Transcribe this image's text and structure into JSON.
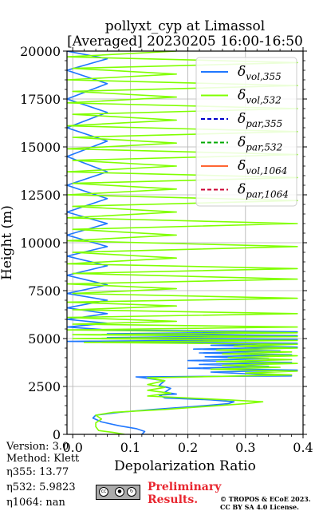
{
  "header": {
    "title_line1": "pollyxt_cyp at Limassol",
    "title_line2": "[Averaged] 20230205 16:00-16:50"
  },
  "info": {
    "version": "Version: 3.0",
    "method": "Method: Klett",
    "eta355": "η355:  13.77",
    "eta532": "η532: 5.9823",
    "eta1064": "η1064:    nan"
  },
  "footer": {
    "preliminary_line1": "Preliminary",
    "preliminary_line2": "Results.",
    "copyright_line1": "© TROPOS & ECoE 2023.",
    "copyright_line2": "CC BY SA 4.0 License."
  },
  "colors": {
    "vol355": "#1f77ff",
    "vol532": "#80ff00",
    "par355": "#0000cc",
    "par532": "#00aa00",
    "vol1064": "#ff6633",
    "par1064": "#cc0033",
    "grid": "#b0b0b0",
    "preliminary": "#e8262f"
  },
  "chart_data": {
    "type": "line",
    "xlabel": "Depolarization Ratio",
    "ylabel": "Height (m)",
    "xlim": [
      -0.01,
      0.4
    ],
    "ylim": [
      0,
      20000
    ],
    "xticks": [
      0.0,
      0.1,
      0.2,
      0.3,
      0.4
    ],
    "xtick_labels": [
      "0.0",
      "0.1",
      "0.2",
      "0.3",
      "0.4"
    ],
    "yticks": [
      0,
      2500,
      5000,
      7500,
      10000,
      12500,
      15000,
      17500,
      20000
    ],
    "ytick_labels": [
      "0",
      "2500",
      "5000",
      "7500",
      "10000",
      "12500",
      "15000",
      "17500",
      "20000"
    ],
    "grid": true,
    "legend_position": "top-right",
    "legend": [
      {
        "base": "δ",
        "sub": "vol,355",
        "style": "solid",
        "color_key": "vol355"
      },
      {
        "base": "δ",
        "sub": "vol,532",
        "style": "solid",
        "color_key": "vol532"
      },
      {
        "base": "δ",
        "sub": "par,355",
        "style": "dashed",
        "color_key": "par355"
      },
      {
        "base": "δ",
        "sub": "par,532",
        "style": "dashed",
        "color_key": "par532"
      },
      {
        "base": "δ",
        "sub": "vol,1064",
        "style": "solid",
        "color_key": "vol1064"
      },
      {
        "base": "δ",
        "sub": "par,1064",
        "style": "dashed",
        "color_key": "par1064"
      }
    ],
    "series": [
      {
        "name": "δvol,355",
        "color_key": "vol355",
        "points": [
          [
            0.12,
            0
          ],
          [
            0.125,
            150
          ],
          [
            0.11,
            300
          ],
          [
            0.08,
            450
          ],
          [
            0.05,
            650
          ],
          [
            0.035,
            850
          ],
          [
            0.04,
            1000
          ],
          [
            0.08,
            1150
          ],
          [
            0.14,
            1300
          ],
          [
            0.21,
            1450
          ],
          [
            0.27,
            1600
          ],
          [
            0.28,
            1700
          ],
          [
            0.24,
            1800
          ],
          [
            0.16,
            1900
          ],
          [
            0.15,
            2050
          ],
          [
            0.18,
            2100
          ],
          [
            0.16,
            2200
          ],
          [
            0.17,
            2400
          ],
          [
            0.15,
            2550
          ],
          [
            0.16,
            2800
          ],
          [
            0.11,
            3000
          ],
          [
            0.38,
            3050
          ],
          [
            0.24,
            3250
          ],
          [
            0.39,
            3350
          ],
          [
            0.2,
            3450
          ],
          [
            0.34,
            3550
          ],
          [
            0.22,
            3650
          ],
          [
            0.38,
            3750
          ],
          [
            0.2,
            3850
          ],
          [
            0.34,
            3950
          ],
          [
            0.23,
            4050
          ],
          [
            0.38,
            4150
          ],
          [
            0.22,
            4250
          ],
          [
            0.36,
            4350
          ],
          [
            0.21,
            4450
          ],
          [
            0.39,
            4550
          ],
          [
            0.24,
            4650
          ],
          [
            0.39,
            4750
          ],
          [
            -0.01,
            4850
          ],
          [
            0.39,
            4950
          ],
          [
            0.06,
            5050
          ],
          [
            0.39,
            5150
          ],
          [
            0.06,
            5250
          ],
          [
            0.39,
            5350
          ],
          [
            0.06,
            5450
          ],
          [
            -0.01,
            5600
          ],
          [
            0.06,
            5800
          ],
          [
            -0.01,
            6000
          ],
          [
            0.06,
            6300
          ],
          [
            -0.01,
            6600
          ],
          [
            0.06,
            7000
          ],
          [
            -0.01,
            7350
          ],
          [
            0.06,
            7800
          ],
          [
            -0.01,
            8300
          ],
          [
            0.06,
            8800
          ],
          [
            -0.01,
            9300
          ],
          [
            0.06,
            9800
          ],
          [
            -0.01,
            10400
          ],
          [
            0.06,
            11000
          ],
          [
            -0.01,
            11600
          ],
          [
            0.06,
            12300
          ],
          [
            -0.01,
            13000
          ],
          [
            0.06,
            13700
          ],
          [
            -0.01,
            14500
          ],
          [
            0.06,
            15300
          ],
          [
            -0.01,
            16000
          ],
          [
            0.06,
            16800
          ],
          [
            -0.01,
            17500
          ],
          [
            0.06,
            18300
          ],
          [
            -0.01,
            19000
          ],
          [
            0.06,
            19600
          ],
          [
            -0.01,
            20000
          ]
        ]
      },
      {
        "name": "δvol,532",
        "color_key": "vol532",
        "points": [
          [
            0.09,
            0
          ],
          [
            0.07,
            100
          ],
          [
            0.045,
            200
          ],
          [
            0.04,
            400
          ],
          [
            0.04,
            600
          ],
          [
            0.05,
            800
          ],
          [
            0.04,
            1000
          ],
          [
            0.07,
            1150
          ],
          [
            0.16,
            1300
          ],
          [
            0.23,
            1450
          ],
          [
            0.3,
            1600
          ],
          [
            0.33,
            1700
          ],
          [
            0.27,
            1800
          ],
          [
            0.2,
            1900
          ],
          [
            0.13,
            2000
          ],
          [
            0.17,
            2150
          ],
          [
            0.13,
            2300
          ],
          [
            0.16,
            2450
          ],
          [
            0.13,
            2600
          ],
          [
            0.16,
            2800
          ],
          [
            0.13,
            2950
          ],
          [
            0.38,
            3100
          ],
          [
            0.3,
            3200
          ],
          [
            0.39,
            3300
          ],
          [
            0.24,
            3400
          ],
          [
            0.36,
            3500
          ],
          [
            0.26,
            3600
          ],
          [
            0.39,
            3700
          ],
          [
            0.25,
            3800
          ],
          [
            0.38,
            3900
          ],
          [
            0.27,
            4000
          ],
          [
            0.39,
            4100
          ],
          [
            0.26,
            4200
          ],
          [
            0.38,
            4300
          ],
          [
            0.25,
            4400
          ],
          [
            0.39,
            4500
          ],
          [
            0.28,
            4600
          ],
          [
            0.39,
            4700
          ],
          [
            0.02,
            4800
          ],
          [
            0.39,
            4900
          ],
          [
            0.0,
            5000
          ],
          [
            0.39,
            5100
          ],
          [
            0.0,
            5200
          ],
          [
            0.39,
            5300
          ],
          [
            -0.01,
            5450
          ],
          [
            0.39,
            5600
          ],
          [
            0.0,
            5750
          ],
          [
            0.18,
            5900
          ],
          [
            -0.01,
            6100
          ],
          [
            0.39,
            6300
          ],
          [
            0.0,
            6500
          ],
          [
            0.18,
            6700
          ],
          [
            -0.01,
            6900
          ],
          [
            0.39,
            7100
          ],
          [
            0.0,
            7350
          ],
          [
            0.18,
            7600
          ],
          [
            -0.01,
            7850
          ],
          [
            0.39,
            8100
          ],
          [
            0.0,
            8400
          ],
          [
            0.39,
            8650
          ],
          [
            -0.01,
            8900
          ],
          [
            0.18,
            9200
          ],
          [
            0.0,
            9500
          ],
          [
            0.39,
            9800
          ],
          [
            -0.01,
            10100
          ],
          [
            0.18,
            10400
          ],
          [
            0.0,
            10700
          ],
          [
            0.39,
            11000
          ],
          [
            -0.01,
            11300
          ],
          [
            0.18,
            11600
          ],
          [
            0.0,
            11900
          ],
          [
            0.39,
            12200
          ],
          [
            -0.01,
            12500
          ],
          [
            0.18,
            12800
          ],
          [
            0.0,
            13100
          ],
          [
            0.39,
            13400
          ],
          [
            -0.01,
            13700
          ],
          [
            0.18,
            14000
          ],
          [
            0.0,
            14300
          ],
          [
            0.39,
            14600
          ],
          [
            -0.01,
            14900
          ],
          [
            0.18,
            15200
          ],
          [
            0.0,
            15500
          ],
          [
            0.39,
            15800
          ],
          [
            -0.01,
            16100
          ],
          [
            0.18,
            16400
          ],
          [
            0.0,
            16700
          ],
          [
            0.39,
            17000
          ],
          [
            -0.01,
            17300
          ],
          [
            0.18,
            17600
          ],
          [
            0.0,
            17900
          ],
          [
            0.39,
            18200
          ],
          [
            -0.01,
            18500
          ],
          [
            0.18,
            18800
          ],
          [
            0.0,
            19100
          ],
          [
            0.39,
            19400
          ],
          [
            -0.01,
            19700
          ],
          [
            0.18,
            20000
          ]
        ]
      }
    ]
  }
}
